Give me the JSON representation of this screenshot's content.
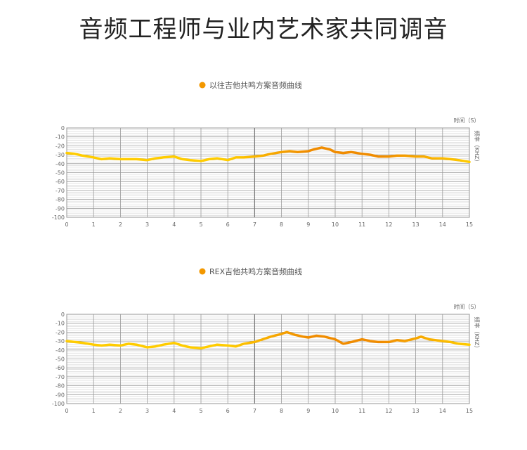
{
  "page": {
    "title": "音频工程师与业内艺术家共同调音"
  },
  "colors": {
    "legend_dot": "#f39800",
    "line_yellow": "#ffcc00",
    "line_orange": "#f08c00",
    "grid_major": "#999999",
    "grid_minor": "#c8c8c8",
    "axis_text": "#666666"
  },
  "chart_data": [
    {
      "type": "line",
      "legend": "以往吉他共鸣方案音频曲线",
      "legend_position": "top-center",
      "x_unit_label": "时间（S）",
      "y_unit_label": "频率（KHZ）",
      "xlim": [
        0,
        15
      ],
      "ylim": [
        -100,
        0
      ],
      "x_ticks": [
        "0",
        "1",
        "2",
        "3",
        "4",
        "5",
        "6",
        "7",
        "8",
        "9",
        "10",
        "11",
        "12",
        "13",
        "14",
        "15"
      ],
      "y_ticks": [
        "0",
        "-10",
        "-20",
        "-30",
        "-40",
        "-50",
        "-60",
        "-70",
        "-80",
        "-90",
        "-100"
      ],
      "grid": true,
      "series": [
        {
          "x": [
            0,
            0.3,
            0.6,
            1.0,
            1.3,
            1.6,
            2.0,
            2.3,
            2.6,
            3.0,
            3.3,
            3.6,
            4.0,
            4.3,
            4.6,
            5.0,
            5.3,
            5.6,
            6.0,
            6.3,
            6.6,
            7.0,
            7.3,
            7.6,
            8.0,
            8.3,
            8.6,
            9.0,
            9.2,
            9.5,
            9.8,
            10.0,
            10.3,
            10.6,
            11.0,
            11.3,
            11.6,
            12.0,
            12.3,
            12.6,
            13.0,
            13.3,
            13.6,
            14.0,
            14.3,
            14.6,
            15.0
          ],
          "y": [
            -28,
            -29,
            -31,
            -33,
            -35,
            -34,
            -35,
            -35,
            -35,
            -36,
            -34,
            -33,
            -32,
            -35,
            -36,
            -37,
            -35,
            -34,
            -36,
            -33,
            -33,
            -32,
            -31,
            -29,
            -27,
            -26,
            -27,
            -26,
            -24,
            -22,
            -24,
            -27,
            -28,
            -27,
            -29,
            -30,
            -32,
            -32,
            -31,
            -31,
            -32,
            -32,
            -34,
            -34,
            -35,
            -36,
            -38
          ]
        }
      ]
    },
    {
      "type": "line",
      "legend": "REX吉他共鸣方案音频曲线",
      "legend_position": "top-center",
      "x_unit_label": "时间（S）",
      "y_unit_label": "频率（KHZ）",
      "xlim": [
        0,
        15
      ],
      "ylim": [
        -100,
        0
      ],
      "x_ticks": [
        "0",
        "1",
        "2",
        "3",
        "4",
        "5",
        "6",
        "7",
        "8",
        "9",
        "10",
        "11",
        "12",
        "13",
        "14",
        "15"
      ],
      "y_ticks": [
        "0",
        "-10",
        "-20",
        "-30",
        "-40",
        "-50",
        "-60",
        "-70",
        "-80",
        "-90",
        "-100"
      ],
      "grid": true,
      "series": [
        {
          "x": [
            0,
            0.3,
            0.6,
            1.0,
            1.3,
            1.6,
            2.0,
            2.3,
            2.6,
            3.0,
            3.3,
            3.6,
            4.0,
            4.3,
            4.6,
            5.0,
            5.3,
            5.6,
            6.0,
            6.3,
            6.6,
            7.0,
            7.3,
            7.6,
            8.0,
            8.2,
            8.5,
            8.8,
            9.0,
            9.3,
            9.6,
            10.0,
            10.3,
            10.6,
            11.0,
            11.3,
            11.6,
            12.0,
            12.3,
            12.6,
            13.0,
            13.2,
            13.5,
            14.0,
            14.3,
            14.6,
            15.0
          ],
          "y": [
            -30,
            -31,
            -32,
            -34,
            -35,
            -34,
            -35,
            -33,
            -34,
            -37,
            -36,
            -34,
            -32,
            -35,
            -37,
            -38,
            -36,
            -34,
            -35,
            -36,
            -33,
            -31,
            -28,
            -25,
            -22,
            -20,
            -23,
            -25,
            -26,
            -24,
            -25,
            -28,
            -33,
            -31,
            -28,
            -30,
            -31,
            -31,
            -29,
            -30,
            -27,
            -25,
            -28,
            -30,
            -31,
            -33,
            -34
          ]
        }
      ]
    }
  ]
}
